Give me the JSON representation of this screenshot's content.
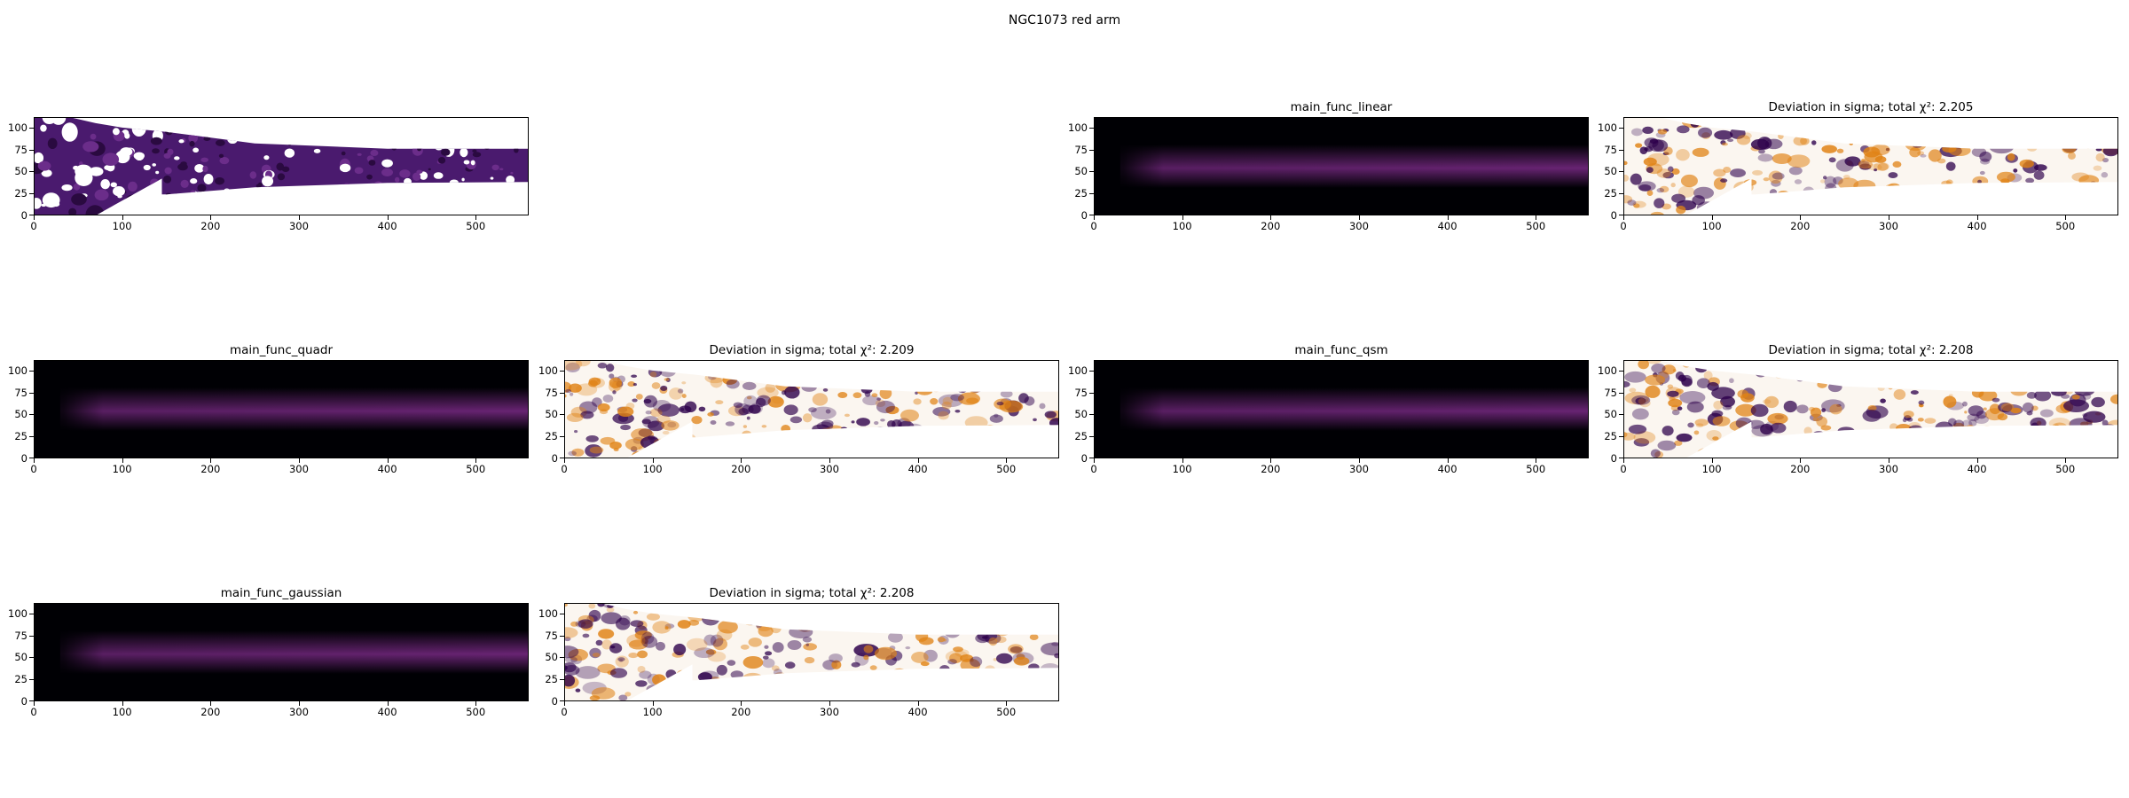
{
  "figure": {
    "suptitle": "NGC1073 red arm"
  },
  "colors": {
    "model_dark": "#000004",
    "model_mid": "#3b0f70",
    "model_peak": "#7a2a86",
    "deviation_positive": "#e08214",
    "deviation_negative": "#2d004b",
    "data_fill": "#4a1a6e"
  },
  "chart_data": [
    {
      "id": "data",
      "type": "heatmap",
      "title": "",
      "image": "observed-data",
      "xlim": [
        0,
        560
      ],
      "ylim": [
        0,
        112
      ],
      "xticks": [
        "0",
        "100",
        "200",
        "300",
        "400",
        "500"
      ],
      "yticks": [
        "0",
        "25",
        "50",
        "75",
        "100"
      ]
    },
    {
      "id": "linear-model",
      "type": "heatmap",
      "title": "main_func_linear",
      "image": "model",
      "xlim": [
        0,
        560
      ],
      "ylim": [
        0,
        112
      ],
      "xticks": [
        "0",
        "100",
        "200",
        "300",
        "400",
        "500"
      ],
      "yticks": [
        "0",
        "25",
        "50",
        "75",
        "100"
      ]
    },
    {
      "id": "linear-deviation",
      "type": "heatmap",
      "title": "Deviation in sigma; total χ²: 2.205",
      "chi2": 2.205,
      "image": "deviation",
      "xlim": [
        0,
        560
      ],
      "ylim": [
        0,
        112
      ],
      "xticks": [
        "0",
        "100",
        "200",
        "300",
        "400",
        "500"
      ],
      "yticks": [
        "0",
        "25",
        "50",
        "75",
        "100"
      ]
    },
    {
      "id": "quadr-model",
      "type": "heatmap",
      "title": "main_func_quadr",
      "image": "model",
      "xlim": [
        0,
        560
      ],
      "ylim": [
        0,
        112
      ],
      "xticks": [
        "0",
        "100",
        "200",
        "300",
        "400",
        "500"
      ],
      "yticks": [
        "0",
        "25",
        "50",
        "75",
        "100"
      ]
    },
    {
      "id": "quadr-deviation",
      "type": "heatmap",
      "title": "Deviation in sigma; total χ²: 2.209",
      "chi2": 2.209,
      "image": "deviation",
      "xlim": [
        0,
        560
      ],
      "ylim": [
        0,
        112
      ],
      "xticks": [
        "0",
        "100",
        "200",
        "300",
        "400",
        "500"
      ],
      "yticks": [
        "0",
        "25",
        "50",
        "75",
        "100"
      ]
    },
    {
      "id": "qsm-model",
      "type": "heatmap",
      "title": "main_func_qsm",
      "image": "model",
      "xlim": [
        0,
        560
      ],
      "ylim": [
        0,
        112
      ],
      "xticks": [
        "0",
        "100",
        "200",
        "300",
        "400",
        "500"
      ],
      "yticks": [
        "0",
        "25",
        "50",
        "75",
        "100"
      ]
    },
    {
      "id": "qsm-deviation",
      "type": "heatmap",
      "title": "Deviation in sigma; total χ²: 2.208",
      "chi2": 2.208,
      "image": "deviation",
      "xlim": [
        0,
        560
      ],
      "ylim": [
        0,
        112
      ],
      "xticks": [
        "0",
        "100",
        "200",
        "300",
        "400",
        "500"
      ],
      "yticks": [
        "0",
        "25",
        "50",
        "75",
        "100"
      ]
    },
    {
      "id": "gaussian-model",
      "type": "heatmap",
      "title": "main_func_gaussian",
      "image": "model",
      "xlim": [
        0,
        560
      ],
      "ylim": [
        0,
        112
      ],
      "xticks": [
        "0",
        "100",
        "200",
        "300",
        "400",
        "500"
      ],
      "yticks": [
        "0",
        "25",
        "50",
        "75",
        "100"
      ]
    },
    {
      "id": "gaussian-deviation",
      "type": "heatmap",
      "title": "Deviation in sigma; total χ²: 2.208",
      "chi2": 2.208,
      "image": "deviation",
      "xlim": [
        0,
        560
      ],
      "ylim": [
        0,
        112
      ],
      "xticks": [
        "0",
        "100",
        "200",
        "300",
        "400",
        "500"
      ],
      "yticks": [
        "0",
        "25",
        "50",
        "75",
        "100"
      ]
    }
  ]
}
